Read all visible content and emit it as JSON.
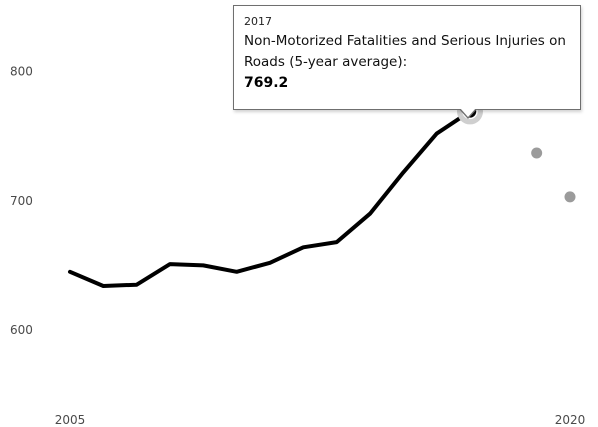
{
  "chart_data": {
    "type": "line",
    "x": [
      2005,
      2006,
      2007,
      2008,
      2009,
      2010,
      2011,
      2012,
      2013,
      2014,
      2015,
      2016,
      2017
    ],
    "series": [
      {
        "name": "Non-Motorized Fatalities and Serious Injuries on Roads (5-year average)",
        "values": [
          645,
          634,
          635,
          651,
          650,
          645,
          652,
          664,
          668,
          690,
          722,
          752,
          769.2
        ],
        "color": "#000000"
      }
    ],
    "targets": [
      {
        "x": 2019,
        "y": 737,
        "color": "#9b9b9b"
      },
      {
        "x": 2020,
        "y": 703,
        "color": "#9b9b9b"
      }
    ],
    "x_ticks": [
      "2005",
      "2020"
    ],
    "y_ticks": [
      "600",
      "700",
      "800"
    ],
    "xlim": [
      2005,
      2020
    ],
    "ylim": [
      538,
      840
    ],
    "grid": false,
    "highlight": {
      "x": 2017,
      "y": 769.2
    },
    "tooltip": {
      "year": "2017",
      "label": "Non-Motorized Fatalities and Serious Injuries on Roads (5-year average):",
      "value": "769.2"
    }
  }
}
